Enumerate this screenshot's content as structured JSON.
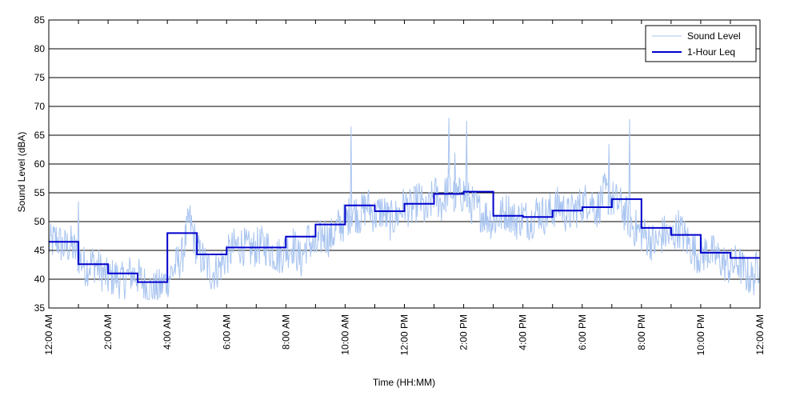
{
  "chart_data": {
    "type": "line",
    "title": "",
    "xlabel": "Time (HH:MM)",
    "ylabel": "Sound Level (dBA)",
    "xlim": [
      0,
      24
    ],
    "ylim": [
      35,
      85
    ],
    "y_ticks": [
      35,
      40,
      45,
      50,
      55,
      60,
      65,
      70,
      75,
      80,
      85
    ],
    "x_ticks": [
      {
        "hour": 0,
        "label": "12:00 AM"
      },
      {
        "hour": 2,
        "label": "2:00 AM"
      },
      {
        "hour": 4,
        "label": "4:00 AM"
      },
      {
        "hour": 6,
        "label": "6:00 AM"
      },
      {
        "hour": 8,
        "label": "8:00 AM"
      },
      {
        "hour": 10,
        "label": "10:00 AM"
      },
      {
        "hour": 12,
        "label": "12:00 PM"
      },
      {
        "hour": 14,
        "label": "2:00 PM"
      },
      {
        "hour": 16,
        "label": "4:00 PM"
      },
      {
        "hour": 18,
        "label": "6:00 PM"
      },
      {
        "hour": 20,
        "label": "8:00 PM"
      },
      {
        "hour": 22,
        "label": "10:00 PM"
      },
      {
        "hour": 24,
        "label": "12:00 AM"
      }
    ],
    "grid": "horizontal",
    "legend_position": "top-right",
    "series": [
      {
        "name": "Sound Level",
        "color": "#a8c4f0",
        "style": "thin-line",
        "x": [
          0.0,
          0.25,
          0.5,
          0.75,
          1.0,
          1.25,
          1.5,
          1.75,
          2.0,
          2.25,
          2.5,
          2.75,
          3.0,
          3.25,
          3.5,
          3.75,
          4.0,
          4.25,
          4.5,
          4.75,
          5.0,
          5.25,
          5.5,
          5.75,
          6.0,
          6.25,
          6.5,
          6.75,
          7.0,
          7.25,
          7.5,
          7.75,
          8.0,
          8.25,
          8.5,
          8.75,
          9.0,
          9.25,
          9.5,
          9.75,
          10.0,
          10.25,
          10.5,
          10.75,
          11.0,
          11.25,
          11.5,
          11.75,
          12.0,
          12.25,
          12.5,
          12.75,
          13.0,
          13.25,
          13.5,
          13.75,
          14.0,
          14.25,
          14.5,
          14.75,
          15.0,
          15.25,
          15.5,
          15.75,
          16.0,
          16.25,
          16.5,
          16.75,
          17.0,
          17.25,
          17.5,
          17.75,
          18.0,
          18.25,
          18.5,
          18.75,
          19.0,
          19.25,
          19.5,
          19.75,
          20.0,
          20.25,
          20.5,
          20.75,
          21.0,
          21.25,
          21.5,
          21.75,
          22.0,
          22.25,
          22.5,
          22.75,
          23.0,
          23.25,
          23.5,
          23.75,
          24.0
        ],
        "values": [
          46,
          47,
          45.5,
          46,
          44,
          42,
          43,
          41.5,
          40,
          40.5,
          39.5,
          41,
          40.5,
          39,
          38,
          38.5,
          40,
          42,
          44,
          50.5,
          45,
          43,
          41,
          42,
          44,
          45.5,
          46,
          45,
          45.5,
          46,
          45,
          44,
          45,
          46,
          43,
          47,
          45,
          48,
          47,
          49,
          50,
          52,
          51,
          53,
          51,
          52,
          50,
          51,
          53,
          52,
          54,
          51,
          55,
          53,
          56,
          54,
          55,
          53,
          52,
          51,
          50,
          51,
          52,
          50,
          51,
          50,
          52,
          51,
          52,
          53,
          51,
          52,
          53,
          54,
          52,
          55,
          54,
          53,
          51,
          49,
          48,
          47,
          46,
          48,
          47,
          49,
          47,
          45,
          44,
          45,
          44,
          43,
          42,
          43,
          41,
          40,
          43
        ]
      },
      {
        "name": "1-Hour Leq",
        "color": "#0000cc",
        "style": "step",
        "step_hours": [
          0,
          1,
          2,
          3,
          4,
          5,
          6,
          7,
          8,
          9,
          10,
          11,
          12,
          13,
          14,
          15,
          16,
          17,
          18,
          19,
          20,
          21,
          22,
          23
        ],
        "values": [
          46.5,
          42.6,
          41.0,
          39.5,
          48.0,
          44.3,
          45.5,
          45.5,
          47.4,
          49.5,
          52.8,
          51.8,
          53.1,
          54.8,
          55.2,
          51.0,
          50.8,
          51.9,
          52.5,
          53.9,
          48.9,
          47.7,
          44.6,
          43.7
        ]
      }
    ],
    "spikes": [
      {
        "hour": 1.0,
        "value": 53.5
      },
      {
        "hour": 10.2,
        "value": 66.5
      },
      {
        "hour": 13.5,
        "value": 68.0
      },
      {
        "hour": 13.7,
        "value": 62.0
      },
      {
        "hour": 14.1,
        "value": 67.5
      },
      {
        "hour": 18.9,
        "value": 63.5
      },
      {
        "hour": 19.6,
        "value": 67.8
      }
    ]
  }
}
